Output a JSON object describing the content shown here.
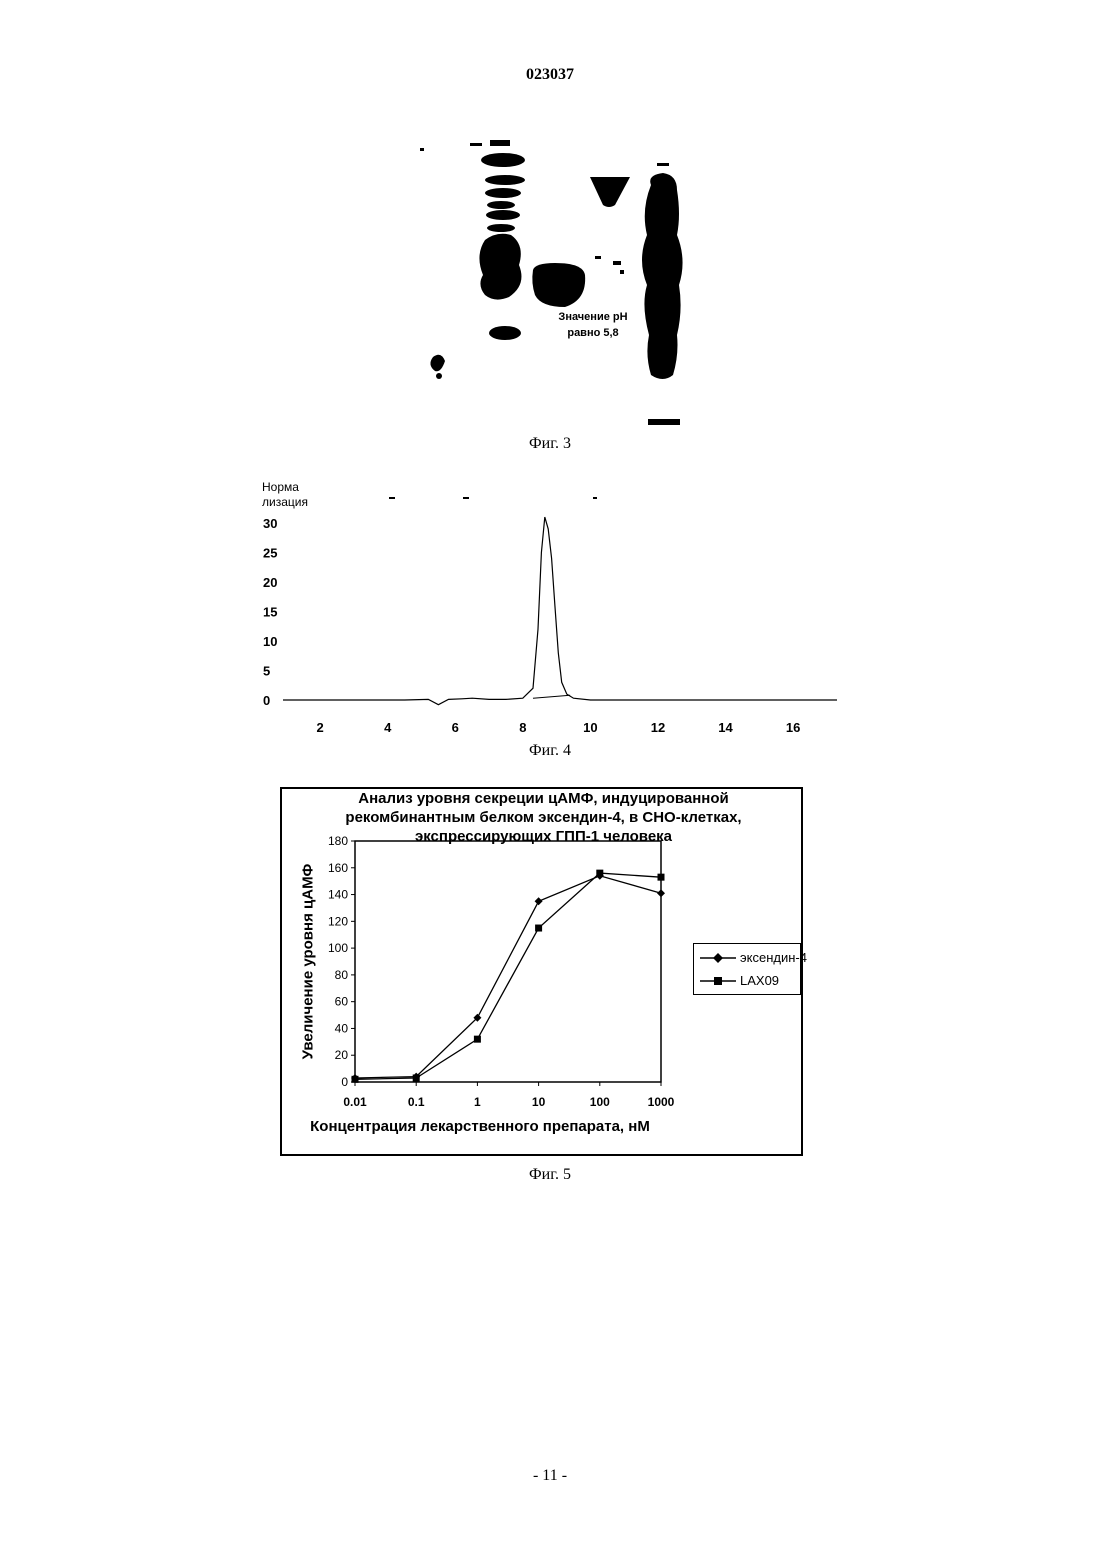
{
  "header": {
    "doc_number": "023037"
  },
  "figure3": {
    "annotation_line1": "Значение рН",
    "annotation_line2": "равно 5,8",
    "caption": "Фиг. 3"
  },
  "figure4": {
    "caption": "Фиг. 4",
    "chart_data": {
      "type": "line",
      "ylabel_line1": "Норма",
      "ylabel_line2": "лизация",
      "y_ticks": [
        "0",
        "5",
        "10",
        "15",
        "20",
        "25",
        "30"
      ],
      "x_ticks": [
        "2",
        "4",
        "6",
        "8",
        "10",
        "12",
        "14",
        "16"
      ],
      "xlim": [
        0.9,
        17.3
      ],
      "ylim": [
        0,
        30
      ],
      "series": [
        {
          "x": [
            0.9,
            3,
            4.5,
            5.2,
            5.5,
            5.8,
            6.2,
            6.5,
            7.0,
            7.5,
            8.0,
            8.3,
            8.45,
            8.55,
            8.65,
            8.75,
            8.85,
            8.95,
            9.05,
            9.15,
            9.3,
            9.5,
            10,
            11,
            13,
            15,
            17.3
          ],
          "y": [
            0,
            0,
            0,
            0.1,
            -0.8,
            0.1,
            0.2,
            0.3,
            0.1,
            0.1,
            0.3,
            2,
            12,
            25,
            31,
            29,
            24,
            16,
            8,
            3,
            1,
            0.3,
            0,
            0,
            0,
            0,
            0
          ]
        }
      ]
    }
  },
  "figure5": {
    "caption": "Фиг. 5",
    "chart_data": {
      "type": "line",
      "title_lines": [
        "Анализ уровня секреции цАМФ, индуцированной",
        "рекомбинантным белком эксендин-4, в СНО-клетках,",
        "экспрессирующих ГПП-1 человека"
      ],
      "xlabel": "Концентрация лекарственного препарата, нМ",
      "ylabel": "Увеличение уровня цАМФ",
      "x_scale": "log",
      "categories": [
        "0.01",
        "0.1",
        "1",
        "10",
        "100",
        "1000"
      ],
      "x": [
        0.01,
        0.1,
        1,
        10,
        100,
        1000
      ],
      "ylim": [
        0,
        180
      ],
      "y_ticks": [
        "0",
        "20",
        "40",
        "60",
        "80",
        "100",
        "120",
        "140",
        "160",
        "180"
      ],
      "legend_placement": "right",
      "series": [
        {
          "name": "эксендин-4",
          "marker": "diamond",
          "values": [
            3,
            4,
            48,
            135,
            154,
            141
          ]
        },
        {
          "name": "LAX09",
          "marker": "square",
          "values": [
            2,
            3,
            32,
            115,
            156,
            153
          ]
        }
      ]
    }
  },
  "footer": {
    "page_number": "- 11 -"
  }
}
